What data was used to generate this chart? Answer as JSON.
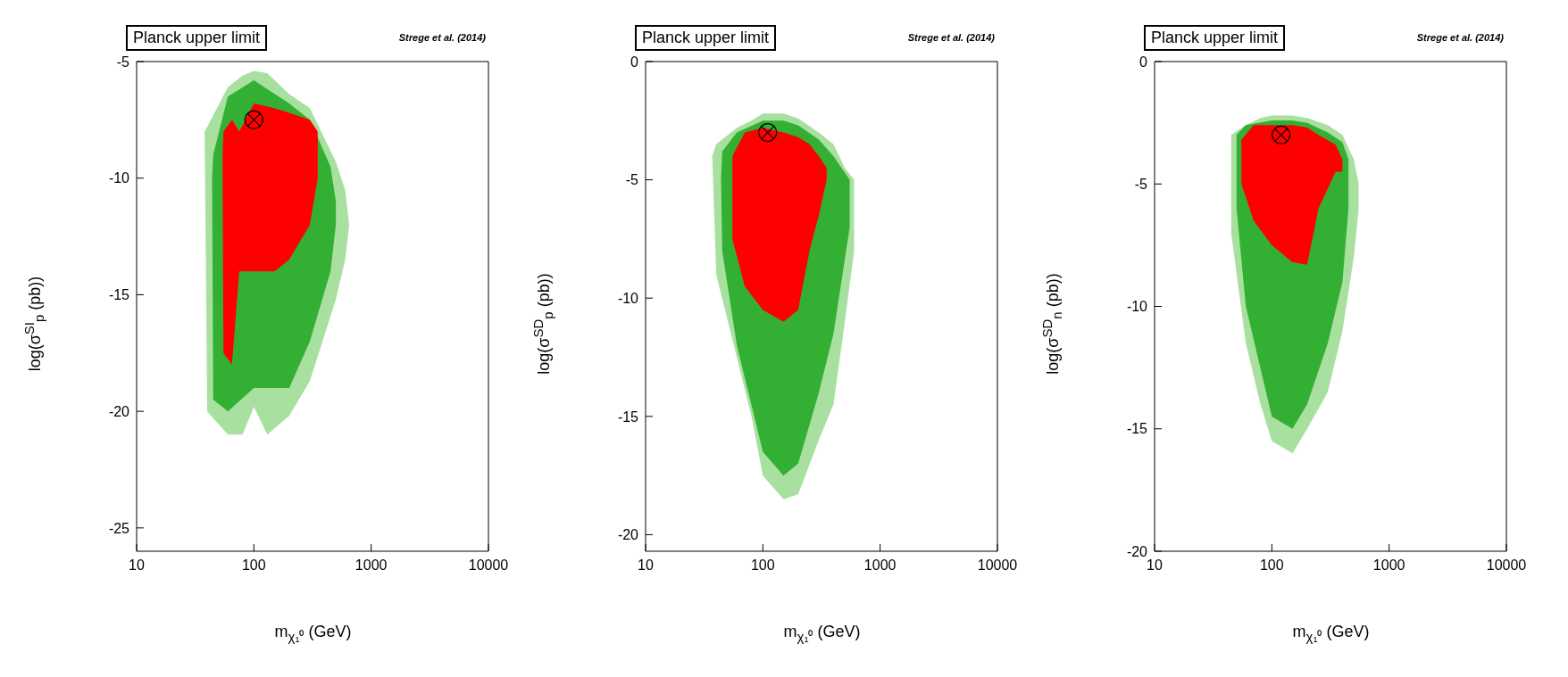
{
  "chart_data": [
    {
      "type": "area",
      "xlabel": "m$_{χ₁⁰}$ (GeV)",
      "ylabel": "log(σ$^{SI}$$_{p}$ (pb))",
      "annotations": [
        "Planck upper limit",
        "Strege et al. (2014)"
      ],
      "log": "x",
      "xlim": [
        10,
        10000
      ],
      "xticks": [
        10,
        100,
        1000,
        10000
      ],
      "ylim": [
        -26,
        -5
      ],
      "yticks": [
        -5,
        -10,
        -15,
        -20,
        -25
      ],
      "grid": false,
      "legend": false,
      "series": [
        {
          "color": "#a8e0a0",
          "x": [
            38,
            40,
            60,
            80,
            100,
            130,
            200,
            300,
            500,
            600,
            650
          ],
          "values": [
            null,
            null,
            null,
            null,
            null,
            null,
            null,
            null,
            null,
            null,
            null
          ],
          "upper": [
            -8,
            -7.8,
            -6.1,
            -5.6,
            -5.4,
            -5.5,
            -6.4,
            -7,
            -9.3,
            -10.5,
            -12
          ],
          "lower": [
            -8,
            -20,
            -21,
            -21,
            -19.8,
            -21,
            -20.2,
            -18.7,
            -15.2,
            -13.5,
            -12
          ]
        },
        {
          "color": "#33b033",
          "x": [
            44,
            45,
            60,
            100,
            200,
            300,
            450,
            500
          ],
          "values": [
            null,
            null,
            null,
            null,
            null,
            null,
            null,
            null
          ],
          "upper": [
            -10,
            -9,
            -6.5,
            -5.8,
            -6.8,
            -7.5,
            -9.5,
            -11
          ],
          "lower": [
            -10,
            -19.5,
            -20,
            -19,
            -19,
            -17,
            -14,
            -12
          ]
        },
        {
          "color": "#ff0000",
          "x": [
            54,
            55,
            65,
            75,
            100,
            150,
            200,
            300,
            350
          ],
          "values": [
            null,
            null,
            null,
            null,
            null,
            null,
            null,
            null,
            null
          ],
          "upper": [
            -9,
            -8,
            -7.5,
            -8,
            -6.8,
            -7,
            -7.2,
            -7.5,
            -8
          ],
          "lower": [
            -9,
            -17.5,
            -18,
            -14,
            -14,
            -14,
            -13.5,
            -12,
            -10
          ]
        },
        {
          "type": "scatter",
          "marker": "circle",
          "x": [
            100
          ],
          "values": [
            -7.5
          ]
        }
      ]
    },
    {
      "type": "area",
      "xlabel": "m$_{χ₁⁰}$ (GeV)",
      "ylabel": "log(σ$^{SD}$$_{p}$ (pb))",
      "annotations": [
        "Planck upper limit",
        "Strege et al. (2014)"
      ],
      "log": "x",
      "xlim": [
        10,
        10000
      ],
      "xticks": [
        10,
        100,
        1000,
        10000
      ],
      "ylim": [
        -20.7,
        0
      ],
      "yticks": [
        0,
        -5,
        -10,
        -15,
        -20
      ],
      "grid": false,
      "legend": false,
      "series": [
        {
          "color": "#a8e0a0",
          "x": [
            37,
            40,
            60,
            80,
            100,
            150,
            200,
            300,
            400,
            500,
            600
          ],
          "values": [
            null,
            null,
            null,
            null,
            null,
            null,
            null,
            null,
            null,
            null,
            null
          ],
          "upper": [
            -4,
            -3.5,
            -2.8,
            -2.5,
            -2.2,
            -2.2,
            -2.4,
            -3,
            -3.5,
            -4.5,
            -5
          ],
          "lower": [
            -4,
            -9,
            -12.5,
            -15,
            -17.5,
            -18.5,
            -18.3,
            -16,
            -14.5,
            -11,
            -8
          ]
        },
        {
          "color": "#33b033",
          "x": [
            44,
            45,
            60,
            100,
            150,
            200,
            300,
            400,
            550
          ],
          "values": [
            null,
            null,
            null,
            null,
            null,
            null,
            null,
            null,
            null
          ],
          "upper": [
            -5,
            -3.8,
            -3,
            -2.5,
            -2.5,
            -2.7,
            -3.3,
            -4,
            -5
          ],
          "lower": [
            -5,
            -8,
            -12,
            -16.5,
            -17.5,
            -17,
            -14,
            -11.5,
            -7
          ]
        },
        {
          "color": "#ff0000",
          "x": [
            55,
            70,
            100,
            150,
            200,
            250,
            300,
            350
          ],
          "values": [
            null,
            null,
            null,
            null,
            null,
            null,
            null,
            null
          ],
          "upper": [
            -4,
            -3,
            -2.8,
            -3,
            -3.2,
            -3.5,
            -4,
            -4.5
          ],
          "lower": [
            -7.5,
            -9.5,
            -10.5,
            -11,
            -10.5,
            -8,
            -6.5,
            -5
          ]
        },
        {
          "type": "scatter",
          "marker": "circle",
          "x": [
            110
          ],
          "values": [
            -3
          ]
        }
      ]
    },
    {
      "type": "area",
      "xlabel": "m$_{χ₁⁰}$ (GeV)",
      "ylabel": "log(σ$^{SD}$$_{n}$ (pb))",
      "annotations": [
        "Planck upper limit",
        "Strege et al. (2014)"
      ],
      "log": "x",
      "xlim": [
        10,
        10000
      ],
      "xticks": [
        10,
        100,
        1000,
        10000
      ],
      "ylim": [
        -20,
        0
      ],
      "yticks": [
        0,
        -5,
        -10,
        -15,
        -20
      ],
      "grid": false,
      "legend": false,
      "series": [
        {
          "color": "#a8e0a0",
          "x": [
            45,
            60,
            80,
            100,
            150,
            200,
            300,
            400,
            500,
            550
          ],
          "values": [
            null,
            null,
            null,
            null,
            null,
            null,
            null,
            null,
            null,
            null
          ],
          "upper": [
            -3,
            -2.6,
            -2.3,
            -2.2,
            -2.2,
            -2.3,
            -2.6,
            -3,
            -4,
            -5
          ],
          "lower": [
            -7,
            -11.5,
            -14,
            -15.5,
            -16,
            -15,
            -13.5,
            -11,
            -8,
            -6
          ]
        },
        {
          "color": "#33b033",
          "x": [
            50,
            60,
            100,
            150,
            200,
            300,
            400,
            450
          ],
          "values": [
            null,
            null,
            null,
            null,
            null,
            null,
            null,
            null
          ],
          "upper": [
            -3,
            -2.6,
            -2.4,
            -2.4,
            -2.5,
            -2.9,
            -3.3,
            -4
          ],
          "lower": [
            -6,
            -10,
            -14.5,
            -15,
            -14,
            -11.5,
            -9,
            -6
          ]
        },
        {
          "color": "#ff0000",
          "x": [
            55,
            70,
            100,
            150,
            200,
            250,
            350,
            400
          ],
          "values": [
            null,
            null,
            null,
            null,
            null,
            null,
            null,
            null
          ],
          "upper": [
            -3.2,
            -2.6,
            -2.6,
            -2.6,
            -2.7,
            -3,
            -3.4,
            -4
          ],
          "lower": [
            -5,
            -6.5,
            -7.5,
            -8.2,
            -8.3,
            -6,
            -4.5,
            -4.5
          ]
        },
        {
          "type": "scatter",
          "marker": "circle",
          "x": [
            120
          ],
          "values": [
            -3
          ]
        }
      ]
    }
  ]
}
